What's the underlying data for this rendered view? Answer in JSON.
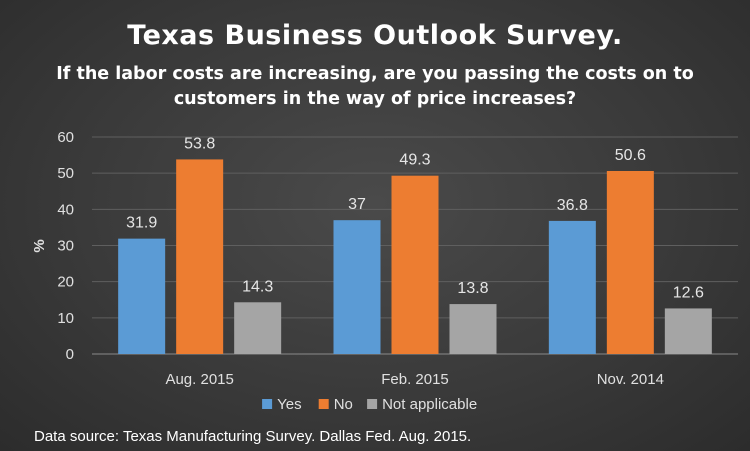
{
  "chart_data": {
    "type": "bar",
    "title": "Texas Business Outlook Survey.",
    "subtitle": "If the labor costs are increasing, are you passing the costs on to customers in the way of price increases?",
    "categories": [
      "Aug. 2015",
      "Feb. 2015",
      "Nov. 2014"
    ],
    "series": [
      {
        "name": "Yes",
        "values": [
          31.9,
          37,
          36.8
        ],
        "color": "#5b9bd5"
      },
      {
        "name": "No",
        "values": [
          53.8,
          49.3,
          50.6
        ],
        "color": "#ed7d31"
      },
      {
        "name": "Not applicable",
        "values": [
          14.3,
          13.8,
          12.6
        ],
        "color": "#a5a5a5"
      }
    ],
    "xlabel": "",
    "ylabel": "%",
    "ylim": [
      0,
      60
    ],
    "yticks": [
      0,
      10,
      20,
      30,
      40,
      50,
      60
    ],
    "grid": true,
    "legend_position": "bottom",
    "data_labels": true,
    "source": "Data source: Texas Manufacturing Survey. Dallas Fed. Aug. 2015."
  }
}
